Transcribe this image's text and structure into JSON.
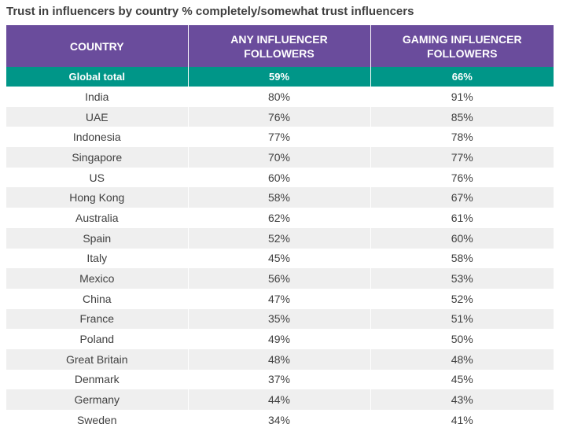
{
  "title": "Trust in influencers by country % completely/somewhat trust influencers",
  "colors": {
    "header_bg": "#6a4c9c",
    "total_bg": "#009688",
    "stripe_bg": "#efefef"
  },
  "chart_data": {
    "type": "table",
    "title": "Trust in influencers by country % completely/somewhat trust influencers",
    "columns": [
      "COUNTRY",
      "ANY INFLUENCER FOLLOWERS",
      "GAMING INFLUENCER FOLLOWERS"
    ],
    "total": [
      "Global total",
      "59%",
      "66%"
    ],
    "rows": [
      [
        "India",
        "80%",
        "91%"
      ],
      [
        "UAE",
        "76%",
        "85%"
      ],
      [
        "Indonesia",
        "77%",
        "78%"
      ],
      [
        "Singapore",
        "70%",
        "77%"
      ],
      [
        "US",
        "60%",
        "76%"
      ],
      [
        "Hong Kong",
        "58%",
        "67%"
      ],
      [
        "Australia",
        "62%",
        "61%"
      ],
      [
        "Spain",
        "52%",
        "60%"
      ],
      [
        "Italy",
        "45%",
        "58%"
      ],
      [
        "Mexico",
        "56%",
        "53%"
      ],
      [
        "China",
        "47%",
        "52%"
      ],
      [
        "France",
        "35%",
        "51%"
      ],
      [
        "Poland",
        "49%",
        "50%"
      ],
      [
        "Great Britain",
        "48%",
        "48%"
      ],
      [
        "Denmark",
        "37%",
        "45%"
      ],
      [
        "Germany",
        "44%",
        "43%"
      ],
      [
        "Sweden",
        "34%",
        "41%"
      ]
    ]
  }
}
